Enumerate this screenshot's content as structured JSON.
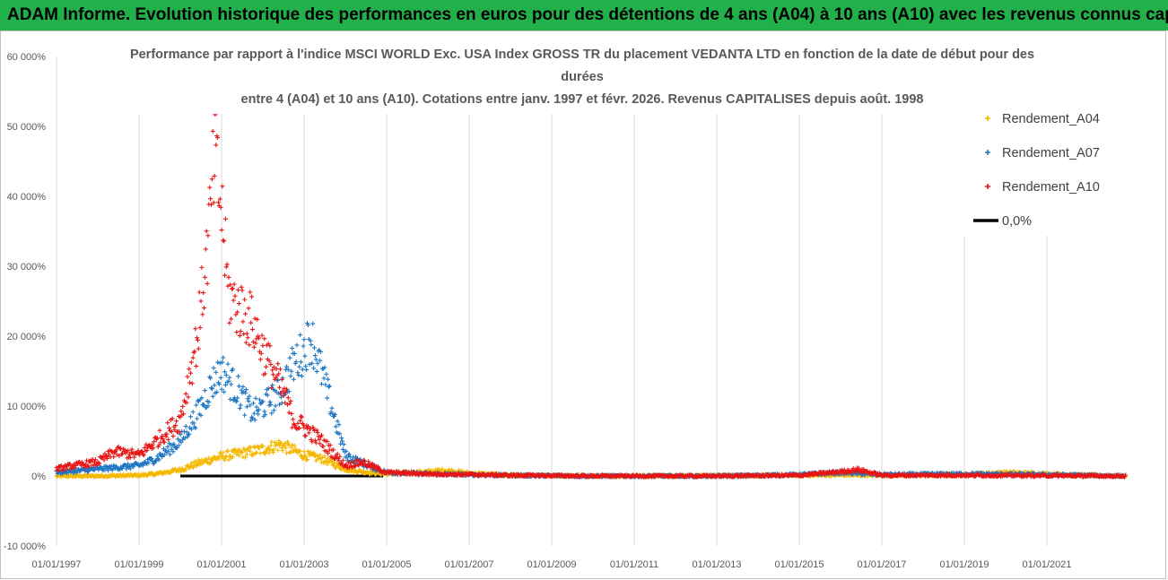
{
  "header": {
    "text": "ADAM Informe. Evolution historique des performances en euros pour des détentions de 4 ans (A04) à 10 ans (A10) avec les revenus connus capitalisés"
  },
  "chart_data": {
    "type": "scatter",
    "title_lines": [
      "Performance par rapport à l'indice MSCI WORLD Exc. USA Index GROSS TR  du placement VEDANTA LTD en fonction de la date de début pour des",
      "durées",
      "entre 4 (A04) et 10 ans (A10).  Cotations entre janv. 1997 et févr. 2026. Revenus CAPITALISES depuis août. 1998"
    ],
    "x_tick_labels": [
      "01/01/1997",
      "01/01/1999",
      "01/01/2001",
      "01/01/2003",
      "01/01/2005",
      "01/01/2007",
      "01/01/2009",
      "01/01/2011",
      "01/01/2013",
      "01/01/2015",
      "01/01/2017",
      "01/01/2019",
      "01/01/2021"
    ],
    "y_tick_labels": [
      "60 000%",
      "50 000%",
      "40 000%",
      "30 000%",
      "20 000%",
      "10 000%",
      "0%",
      "-10 000%"
    ],
    "xlim": [
      "1997-01-01",
      "2023-01-01"
    ],
    "ylim": [
      -10000,
      60000
    ],
    "grid": "vertical",
    "legend_position": "right",
    "series": [
      {
        "name": "Rendement_A04",
        "color": "#f5b800",
        "marker": "+",
        "x": [
          "1997-01",
          "1998-01",
          "1999-01",
          "1999-06",
          "2000-01",
          "2000-06",
          "2001-01",
          "2001-06",
          "2002-01",
          "2002-06",
          "2003-01",
          "2003-06",
          "2004-01",
          "2004-06",
          "2005-01",
          "2006-01",
          "2006-06",
          "2007-01",
          "2008-01",
          "2010-01",
          "2015-01",
          "2016-01",
          "2017-01",
          "2019-01",
          "2020-01",
          "2021-01",
          "2022-01",
          "2022-12"
        ],
        "y": [
          0,
          0,
          100,
          300,
          900,
          1800,
          2800,
          3200,
          3800,
          4500,
          3000,
          2500,
          1000,
          600,
          300,
          600,
          800,
          400,
          100,
          0,
          100,
          150,
          100,
          200,
          500,
          300,
          100,
          0
        ]
      },
      {
        "name": "Rendement_A07",
        "color": "#1f77c4",
        "marker": "+",
        "x": [
          "1997-01",
          "1998-01",
          "1998-06",
          "1999-01",
          "1999-06",
          "2000-01",
          "2000-06",
          "2000-10",
          "2001-01",
          "2001-06",
          "2001-10",
          "2002-01",
          "2002-06",
          "2002-10",
          "2003-01",
          "2003-03",
          "2003-06",
          "2004-01",
          "2004-06",
          "2005-01",
          "2006-01",
          "2007-01",
          "2008-01",
          "2010-01",
          "2013-01",
          "2015-01",
          "2016-01",
          "2017-01",
          "2019-01",
          "2021-01",
          "2022-12"
        ],
        "y": [
          500,
          1000,
          1200,
          1500,
          2500,
          5000,
          9000,
          13000,
          15000,
          12000,
          9000,
          10000,
          12000,
          16000,
          18000,
          20000,
          15000,
          3000,
          1800,
          500,
          300,
          200,
          100,
          0,
          0,
          200,
          500,
          200,
          300,
          200,
          0
        ]
      },
      {
        "name": "Rendement_A10",
        "color": "#e81515",
        "marker": "+",
        "x": [
          "1997-01",
          "1997-06",
          "1998-01",
          "1998-06",
          "1999-01",
          "1999-06",
          "2000-01",
          "2000-06",
          "2000-09",
          "2000-11",
          "2001-01",
          "2001-03",
          "2001-06",
          "2001-10",
          "2002-01",
          "2002-06",
          "2002-10",
          "2003-01",
          "2003-06",
          "2004-01",
          "2004-06",
          "2005-01",
          "2006-01",
          "2008-01",
          "2010-01",
          "2013-01",
          "2015-01",
          "2016-01",
          "2016-06",
          "2017-01",
          "2019-01",
          "2021-01",
          "2022-12"
        ],
        "y": [
          1000,
          1500,
          2000,
          3500,
          3000,
          5000,
          8000,
          20000,
          33000,
          45000,
          38000,
          26000,
          24000,
          22000,
          18000,
          13000,
          8000,
          7000,
          5000,
          1500,
          2000,
          500,
          300,
          100,
          0,
          0,
          100,
          600,
          900,
          100,
          100,
          50,
          0
        ]
      },
      {
        "name": "0,0%",
        "color": "#000000",
        "marker": "line",
        "x": [
          "2000-01",
          "2004-12"
        ],
        "y": [
          0,
          0
        ]
      }
    ]
  }
}
